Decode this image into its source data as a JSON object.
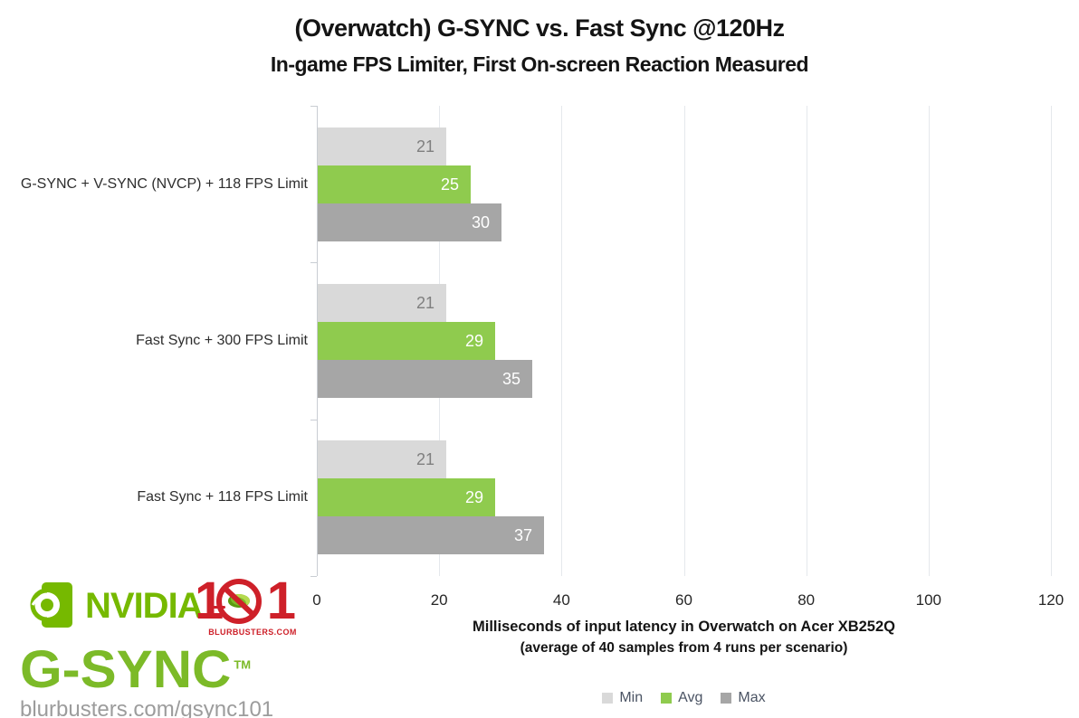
{
  "title": "(Overwatch) G-SYNC vs. Fast Sync @120Hz",
  "subtitle": "In-game FPS Limiter, First On-screen Reaction Measured",
  "chart_data": {
    "type": "bar",
    "orientation": "horizontal",
    "title": "(Overwatch) G-SYNC vs. Fast Sync @120Hz",
    "subtitle": "In-game FPS Limiter, First On-screen Reaction Measured",
    "categories": [
      "G-SYNC + V-SYNC (NVCP) + 118 FPS Limit",
      "Fast Sync + 300 FPS Limit",
      "Fast Sync + 118 FPS Limit"
    ],
    "series": [
      {
        "name": "Min",
        "color": "#D9D9D9",
        "label_color": "#7F7F7F",
        "values": [
          21,
          21,
          21
        ]
      },
      {
        "name": "Avg",
        "color": "#8FCB4E",
        "label_color": "#FFFFFF",
        "values": [
          25,
          29,
          29
        ]
      },
      {
        "name": "Max",
        "color": "#A6A6A6",
        "label_color": "#FFFFFF",
        "values": [
          30,
          35,
          37
        ]
      }
    ],
    "x_ticks": [
      0,
      20,
      40,
      60,
      80,
      100,
      120
    ],
    "xlim": [
      0,
      120
    ],
    "xlabel_line1": "Milliseconds of input latency in Overwatch on Acer XB252Q",
    "xlabel_line2": "(average of 40 samples from 4 runs per scenario)",
    "legend": [
      "Min",
      "Avg",
      "Max"
    ],
    "legend_position": "bottom-center",
    "grid": true,
    "grid_color": "#E5E8EC",
    "axis_color": "#C9CDD3"
  },
  "logo": {
    "brand": "NVIDIA",
    "product": "G-SYNC",
    "trademark": "TM",
    "badge": {
      "left_digit": "1",
      "right_digit": "1",
      "site": "BLURBUSTERS.COM"
    },
    "url": "blurbusters.com/gsync101",
    "colors": {
      "nvidia_green": "#76B900",
      "gsync_green": "#7CBA28",
      "red": "#CE2029",
      "url_gray": "#9C9C9C"
    }
  }
}
